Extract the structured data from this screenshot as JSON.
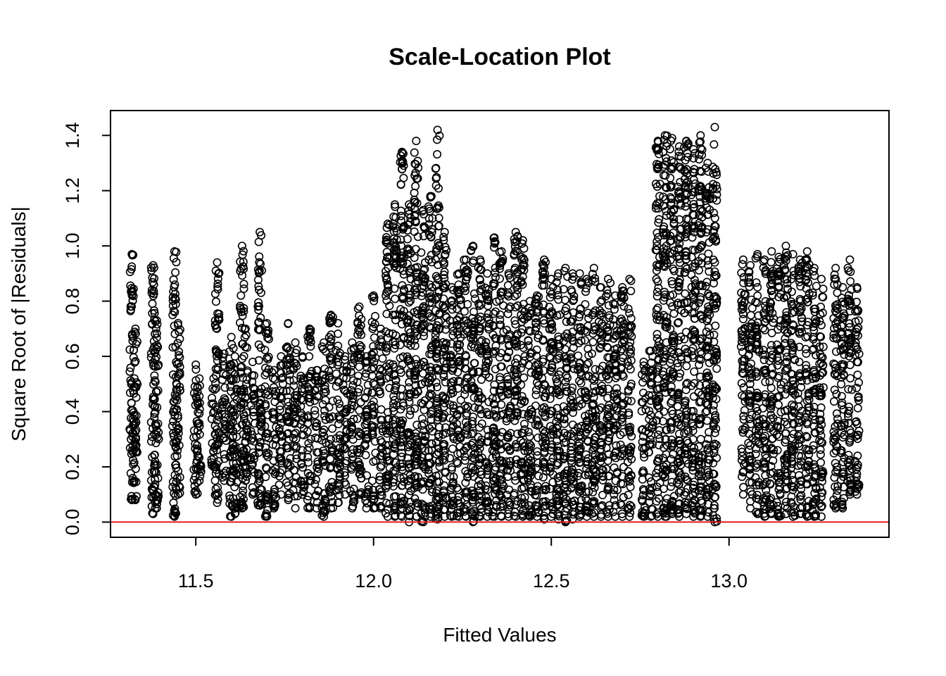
{
  "chart_data": {
    "type": "scatter",
    "title": "Scale-Location Plot",
    "xlabel": "Fitted Values",
    "ylabel": "Square Root of |Residuals|",
    "xlim": [
      11.26,
      13.45
    ],
    "ylim": [
      -0.055,
      1.49
    ],
    "x_ticks": [
      11.5,
      12.0,
      12.5,
      13.0
    ],
    "x_tick_labels": [
      "11.5",
      "12.0",
      "12.5",
      "13.0"
    ],
    "y_ticks": [
      0.0,
      0.2,
      0.4,
      0.6,
      0.8,
      1.0,
      1.2,
      1.4
    ],
    "y_tick_labels": [
      "0.0",
      "0.2",
      "0.4",
      "0.6",
      "0.8",
      "1.0",
      "1.2",
      "1.4"
    ],
    "reference_line": {
      "y": 0,
      "color": "#e31a1c"
    },
    "marker": "open-circle",
    "point_color": "#000000",
    "grid": false,
    "series": [
      {
        "x_groups": [
          11.32,
          11.33,
          11.38,
          11.39,
          11.44,
          11.45,
          11.5,
          11.51,
          11.55,
          11.56,
          11.58,
          11.6,
          11.61,
          11.63,
          11.64,
          11.66,
          11.68,
          11.7,
          11.72,
          11.74,
          11.76,
          11.78,
          11.8,
          11.82,
          11.84,
          11.86,
          11.88,
          11.9,
          11.92,
          11.94,
          11.96,
          11.98,
          12.0,
          12.02,
          12.04,
          12.06,
          12.08,
          12.1,
          12.12,
          12.14,
          12.16,
          12.18,
          12.2,
          12.22,
          12.24,
          12.26,
          12.28,
          12.3,
          12.32,
          12.34,
          12.36,
          12.38,
          12.4,
          12.42,
          12.44,
          12.46,
          12.48,
          12.5,
          12.52,
          12.54,
          12.56,
          12.58,
          12.6,
          12.62,
          12.64,
          12.66,
          12.68,
          12.7,
          12.72,
          12.76,
          12.78,
          12.8,
          12.82,
          12.84,
          12.86,
          12.88,
          12.9,
          12.92,
          12.94,
          12.96,
          13.04,
          13.06,
          13.08,
          13.1,
          13.12,
          13.14,
          13.16,
          13.18,
          13.2,
          13.22,
          13.24,
          13.26,
          13.3,
          13.32,
          13.34,
          13.36
        ],
        "y_ranges": [
          [
            0.08,
            0.97
          ],
          [
            0.08,
            0.7
          ],
          [
            0.03,
            0.93
          ],
          [
            0.05,
            0.73
          ],
          [
            0.02,
            0.98
          ],
          [
            0.1,
            0.72
          ],
          [
            0.1,
            0.57
          ],
          [
            0.15,
            0.52
          ],
          [
            0.2,
            0.52
          ],
          [
            0.07,
            0.94
          ],
          [
            0.15,
            0.61
          ],
          [
            0.02,
            0.67
          ],
          [
            0.03,
            0.6
          ],
          [
            0.05,
            1.0
          ],
          [
            0.15,
            0.7
          ],
          [
            0.1,
            0.58
          ],
          [
            0.06,
            1.05
          ],
          [
            0.02,
            0.72
          ],
          [
            0.05,
            0.55
          ],
          [
            0.1,
            0.6
          ],
          [
            0.08,
            0.72
          ],
          [
            0.05,
            0.65
          ],
          [
            0.1,
            0.6
          ],
          [
            0.05,
            0.7
          ],
          [
            0.05,
            0.55
          ],
          [
            0.02,
            0.65
          ],
          [
            0.05,
            0.75
          ],
          [
            0.07,
            0.72
          ],
          [
            0.1,
            0.6
          ],
          [
            0.05,
            0.65
          ],
          [
            0.1,
            0.78
          ],
          [
            0.05,
            0.6
          ],
          [
            0.05,
            0.82
          ],
          [
            0.05,
            0.7
          ],
          [
            0.02,
            1.08
          ],
          [
            0.02,
            1.15
          ],
          [
            0.02,
            1.34
          ],
          [
            0.0,
            1.15
          ],
          [
            0.02,
            1.38
          ],
          [
            0.0,
            1.13
          ],
          [
            0.02,
            1.18
          ],
          [
            0.01,
            1.42
          ],
          [
            0.02,
            1.05
          ],
          [
            0.02,
            0.85
          ],
          [
            0.02,
            0.9
          ],
          [
            0.02,
            0.95
          ],
          [
            0.0,
            1.0
          ],
          [
            0.02,
            0.95
          ],
          [
            0.02,
            0.9
          ],
          [
            0.02,
            1.03
          ],
          [
            0.02,
            0.98
          ],
          [
            0.02,
            0.9
          ],
          [
            0.02,
            1.05
          ],
          [
            0.02,
            1.02
          ],
          [
            0.02,
            0.8
          ],
          [
            0.02,
            0.82
          ],
          [
            0.01,
            0.95
          ],
          [
            0.02,
            0.88
          ],
          [
            0.01,
            0.9
          ],
          [
            0.0,
            0.92
          ],
          [
            0.01,
            0.9
          ],
          [
            0.02,
            0.9
          ],
          [
            0.02,
            0.88
          ],
          [
            0.02,
            0.92
          ],
          [
            0.02,
            0.85
          ],
          [
            0.02,
            0.88
          ],
          [
            0.02,
            0.82
          ],
          [
            0.02,
            0.85
          ],
          [
            0.02,
            0.88
          ],
          [
            0.02,
            0.58
          ],
          [
            0.02,
            0.62
          ],
          [
            0.02,
            1.38
          ],
          [
            0.02,
            1.4
          ],
          [
            0.03,
            1.39
          ],
          [
            0.02,
            1.36
          ],
          [
            0.03,
            1.38
          ],
          [
            0.02,
            1.35
          ],
          [
            0.02,
            1.4
          ],
          [
            0.02,
            1.3
          ],
          [
            0.0,
            1.43
          ],
          [
            0.1,
            0.95
          ],
          [
            0.05,
            0.93
          ],
          [
            0.03,
            0.97
          ],
          [
            0.02,
            0.95
          ],
          [
            0.03,
            0.98
          ],
          [
            0.02,
            0.96
          ],
          [
            0.03,
            1.0
          ],
          [
            0.02,
            0.97
          ],
          [
            0.03,
            0.95
          ],
          [
            0.02,
            0.98
          ],
          [
            0.02,
            0.92
          ],
          [
            0.02,
            0.88
          ],
          [
            0.05,
            0.92
          ],
          [
            0.05,
            0.85
          ],
          [
            0.1,
            0.95
          ],
          [
            0.1,
            0.85
          ]
        ]
      }
    ]
  }
}
